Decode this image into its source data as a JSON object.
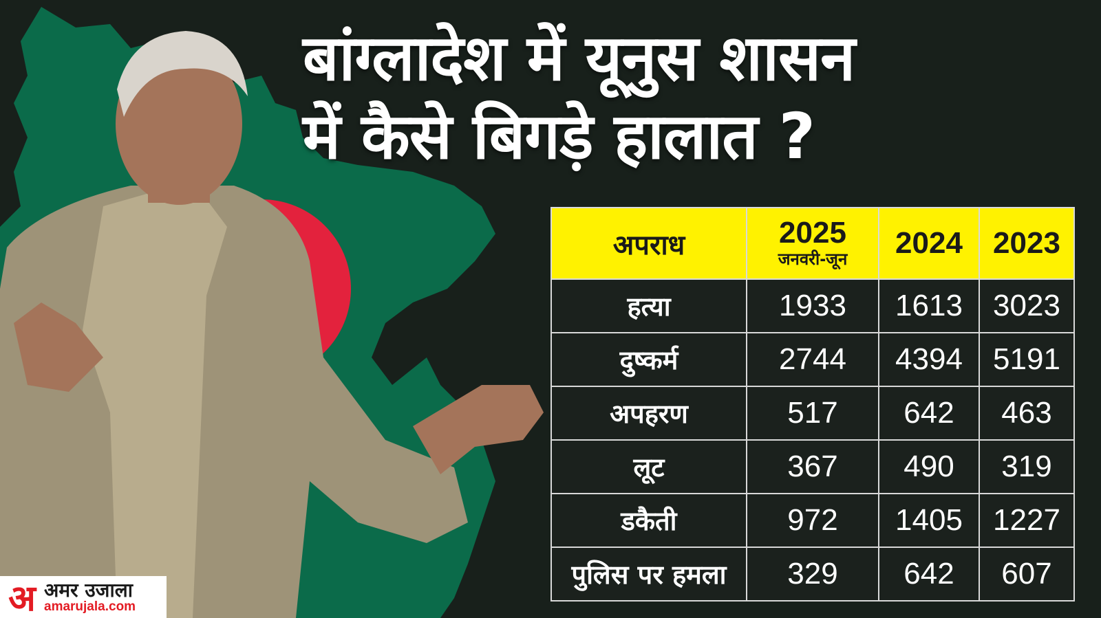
{
  "headline": {
    "line1": "बांग्लादेश में यूनुस शासन",
    "line2": "में कैसे बिगड़े हालात ?"
  },
  "table": {
    "columns": [
      {
        "label": "अपराध",
        "sublabel": ""
      },
      {
        "label": "2025",
        "sublabel": "जनवरी-जून"
      },
      {
        "label": "2024",
        "sublabel": ""
      },
      {
        "label": "2023",
        "sublabel": ""
      }
    ],
    "rows": [
      {
        "crime": "हत्या",
        "y2025": "1933",
        "y2024": "1613",
        "y2023": "3023"
      },
      {
        "crime": "दुष्कर्म",
        "y2025": "2744",
        "y2024": "4394",
        "y2023": "5191"
      },
      {
        "crime": "अपहरण",
        "y2025": "517",
        "y2024": "642",
        "y2023": "463"
      },
      {
        "crime": "लूट",
        "y2025": "367",
        "y2024": "490",
        "y2023": "319"
      },
      {
        "crime": "डकैती",
        "y2025": "972",
        "y2024": "1405",
        "y2023": "1227"
      },
      {
        "crime": "पुलिस पर हमला",
        "y2025": "329",
        "y2024": "642",
        "y2023": "607"
      }
    ]
  },
  "logo": {
    "mark": "अ",
    "name": "अमर उजाला",
    "url": "amarujala.com"
  },
  "colors": {
    "background": "#18201b",
    "map_green": "#0b6b4a",
    "flag_red": "#e3223d",
    "header_yellow": "#fff200",
    "brand_red": "#e31b23"
  }
}
